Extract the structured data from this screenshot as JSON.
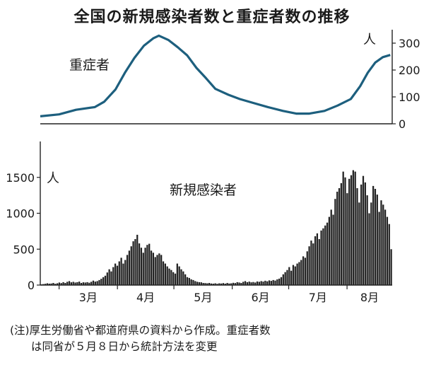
{
  "title": "全国の新規感染者数と重症者数の推移",
  "note_line1": "(注)厚生労働省や都道府県の資料から作成。重症者数",
  "note_line2": "は同省が５月８日から統計方法を変更",
  "colors": {
    "severe_line": "#1d5f7e",
    "bars": "#222222",
    "axis": "#222222"
  },
  "chart_data": [
    {
      "type": "line",
      "series_label": "重症者",
      "unit": "人",
      "ylim": [
        0,
        350
      ],
      "yticks": [
        0,
        100,
        200,
        300
      ],
      "grid": false,
      "x_start": "2020-02-20",
      "x_end": "2020-08-25",
      "points": [
        [
          "2020-02-20",
          28
        ],
        [
          "2020-03-01",
          35
        ],
        [
          "2020-03-10",
          52
        ],
        [
          "2020-03-20",
          62
        ],
        [
          "2020-03-25",
          82
        ],
        [
          "2020-03-31",
          128
        ],
        [
          "2020-04-05",
          190
        ],
        [
          "2020-04-10",
          245
        ],
        [
          "2020-04-15",
          290
        ],
        [
          "2020-04-20",
          318
        ],
        [
          "2020-04-23",
          328
        ],
        [
          "2020-04-28",
          312
        ],
        [
          "2020-05-03",
          285
        ],
        [
          "2020-05-08",
          255
        ],
        [
          "2020-05-13",
          208
        ],
        [
          "2020-05-18",
          170
        ],
        [
          "2020-05-23",
          130
        ],
        [
          "2020-05-30",
          108
        ],
        [
          "2020-06-05",
          92
        ],
        [
          "2020-06-12",
          78
        ],
        [
          "2020-06-20",
          62
        ],
        [
          "2020-06-28",
          48
        ],
        [
          "2020-07-05",
          38
        ],
        [
          "2020-07-12",
          38
        ],
        [
          "2020-07-20",
          48
        ],
        [
          "2020-07-27",
          68
        ],
        [
          "2020-08-03",
          92
        ],
        [
          "2020-08-08",
          140
        ],
        [
          "2020-08-12",
          190
        ],
        [
          "2020-08-16",
          228
        ],
        [
          "2020-08-20",
          248
        ],
        [
          "2020-08-24",
          256
        ]
      ]
    },
    {
      "type": "bar",
      "series_label": "新規感染者",
      "unit": "人",
      "ylim": [
        0,
        2000
      ],
      "yticks": [
        0,
        500,
        1000,
        1500
      ],
      "grid": false,
      "x_start": "2020-02-20",
      "x_end": "2020-08-25",
      "month_ticks": [
        "2020-03-01",
        "2020-04-01",
        "2020-05-01",
        "2020-06-01",
        "2020-07-01",
        "2020-08-01"
      ],
      "month_labels": [
        "3月",
        "4月",
        "5月",
        "6月",
        "7月",
        "8月"
      ],
      "values": [
        10,
        14,
        18,
        25,
        20,
        22,
        30,
        18,
        25,
        35,
        28,
        40,
        30,
        45,
        55,
        38,
        45,
        35,
        40,
        48,
        30,
        38,
        35,
        40,
        33,
        45,
        62,
        48,
        55,
        70,
        88,
        110,
        130,
        175,
        220,
        190,
        250,
        300,
        270,
        330,
        380,
        300,
        350,
        420,
        480,
        540,
        610,
        640,
        700,
        580,
        520,
        450,
        520,
        560,
        575,
        480,
        450,
        390,
        420,
        440,
        420,
        330,
        300,
        260,
        230,
        210,
        180,
        160,
        300,
        260,
        220,
        190,
        150,
        110,
        100,
        80,
        70,
        55,
        45,
        40,
        38,
        30,
        28,
        25,
        30,
        22,
        20,
        25,
        18,
        25,
        22,
        28,
        20,
        30,
        22,
        25,
        32,
        28,
        40,
        35,
        30,
        45,
        55,
        40,
        48,
        38,
        42,
        35,
        50,
        45,
        55,
        48,
        60,
        52,
        65,
        58,
        70,
        62,
        80,
        90,
        110,
        150,
        180,
        210,
        250,
        200,
        280,
        260,
        300,
        320,
        350,
        400,
        380,
        470,
        540,
        620,
        580,
        680,
        720,
        640,
        760,
        790,
        830,
        870,
        950,
        1050,
        980,
        1200,
        1300,
        1350,
        1420,
        1580,
        1500,
        1280,
        1480,
        1530,
        1600,
        1580,
        1350,
        1150,
        1400,
        1520,
        1430,
        1250,
        1000,
        1150,
        1380,
        1340,
        1260,
        1020,
        1180,
        1120,
        1050,
        950,
        850,
        500
      ]
    }
  ]
}
